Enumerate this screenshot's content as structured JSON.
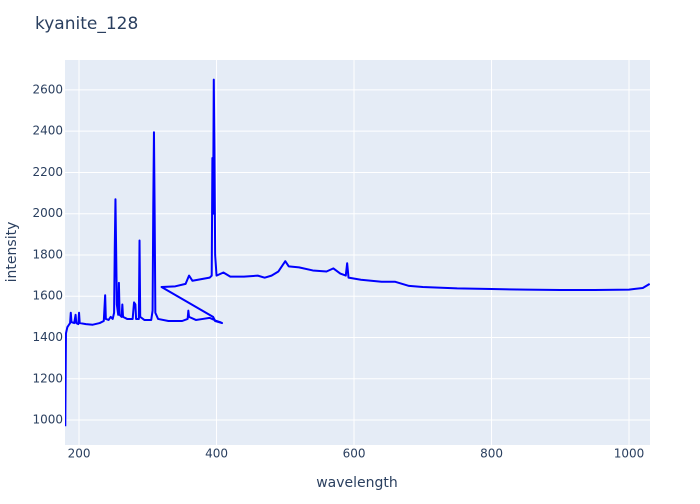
{
  "chart_data": {
    "type": "line",
    "title": "kyanite_128",
    "x_label": "wavelength",
    "y_label": "intensity",
    "series": [
      {
        "name": "kyanite_128",
        "color": "#0000ff",
        "x": [
          180,
          181,
          183,
          185,
          187,
          188,
          189,
          193,
          195,
          196,
          199,
          200,
          201,
          210,
          220,
          230,
          236,
          238,
          239,
          243,
          246,
          249,
          251,
          252,
          253,
          254,
          255,
          257,
          258,
          259,
          262,
          263,
          264,
          270,
          278,
          280,
          282,
          283,
          287,
          288,
          289,
          295,
          305,
          307,
          308,
          309,
          310,
          311,
          315,
          330,
          350,
          358,
          359,
          360,
          370,
          380,
          390,
          400,
          405,
          408,
          398,
          395,
          320,
          340,
          355,
          360,
          365,
          390,
          393,
          394,
          395,
          396,
          397,
          398,
          400,
          410,
          420,
          440,
          460,
          470,
          480,
          490,
          500,
          505,
          520,
          540,
          560,
          570,
          580,
          588,
          590,
          592,
          610,
          640,
          660,
          680,
          700,
          750,
          800,
          850,
          900,
          950,
          1000,
          1020,
          1030
        ],
        "values": [
          970,
          1420,
          1450,
          1460,
          1470,
          1520,
          1475,
          1470,
          1510,
          1470,
          1465,
          1520,
          1470,
          1465,
          1462,
          1470,
          1480,
          1605,
          1490,
          1485,
          1500,
          1490,
          1520,
          1840,
          2070,
          1820,
          1560,
          1510,
          1665,
          1510,
          1500,
          1560,
          1500,
          1490,
          1490,
          1570,
          1560,
          1490,
          1490,
          1870,
          1500,
          1485,
          1485,
          1530,
          2040,
          2395,
          2000,
          1520,
          1490,
          1480,
          1480,
          1490,
          1530,
          1500,
          1485,
          1490,
          1495,
          1480,
          1475,
          1470,
          1480,
          1500,
          1645,
          1648,
          1660,
          1700,
          1675,
          1690,
          1700,
          2270,
          2000,
          2650,
          2300,
          1800,
          1700,
          1715,
          1695,
          1695,
          1700,
          1690,
          1700,
          1720,
          1770,
          1745,
          1740,
          1725,
          1720,
          1735,
          1710,
          1700,
          1760,
          1690,
          1680,
          1670,
          1670,
          1650,
          1645,
          1638,
          1635,
          1632,
          1630,
          1630,
          1632,
          1640,
          1660
        ]
      }
    ],
    "xlim": [
      179.6,
      1030.5
    ],
    "xticks": [
      200,
      400,
      600,
      800,
      1000
    ],
    "ylim": [
      879,
      2745
    ],
    "yticks": [
      1000,
      1200,
      1400,
      1600,
      1800,
      2000,
      2200,
      2400,
      2600
    ],
    "grid": true
  }
}
